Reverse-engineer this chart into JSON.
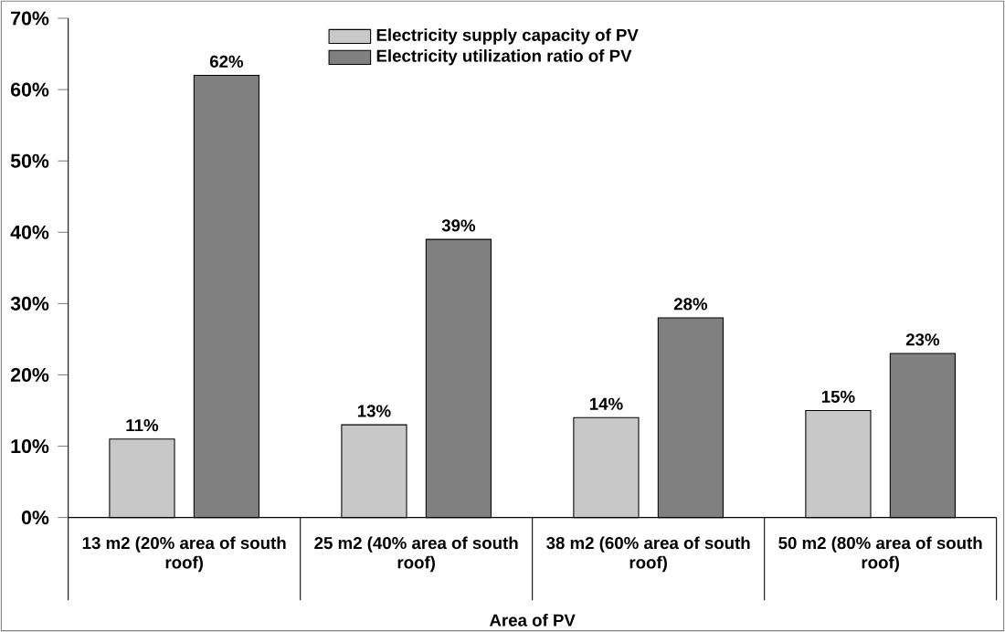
{
  "chart_data": {
    "type": "bar",
    "xlabel": "Area of PV",
    "categories": [
      "13 m2 (20% area of south roof)",
      "25 m2 (40% area of south roof)",
      "38 m2 (60% area of south roof)",
      "50 m2 (80% area of south roof)"
    ],
    "series": [
      {
        "name": "Electricity supply capacity of PV",
        "color": "#c8c8c8",
        "values": [
          11,
          13,
          14,
          15
        ],
        "value_labels": [
          "11%",
          "13%",
          "14%",
          "15%"
        ]
      },
      {
        "name": "Electricity utilization ratio of PV",
        "color": "#808080",
        "values": [
          62,
          39,
          28,
          23
        ],
        "value_labels": [
          "62%",
          "39%",
          "28%",
          "23%"
        ]
      }
    ],
    "ylim": [
      0,
      70
    ],
    "yticks": [
      {
        "value": 0,
        "label": "0%"
      },
      {
        "value": 10,
        "label": "10%"
      },
      {
        "value": 20,
        "label": "20%"
      },
      {
        "value": 30,
        "label": "30%"
      },
      {
        "value": 40,
        "label": "40%"
      },
      {
        "value": 50,
        "label": "50%"
      },
      {
        "value": 60,
        "label": "60%"
      },
      {
        "value": 70,
        "label": "70%"
      }
    ],
    "legend": "top"
  }
}
